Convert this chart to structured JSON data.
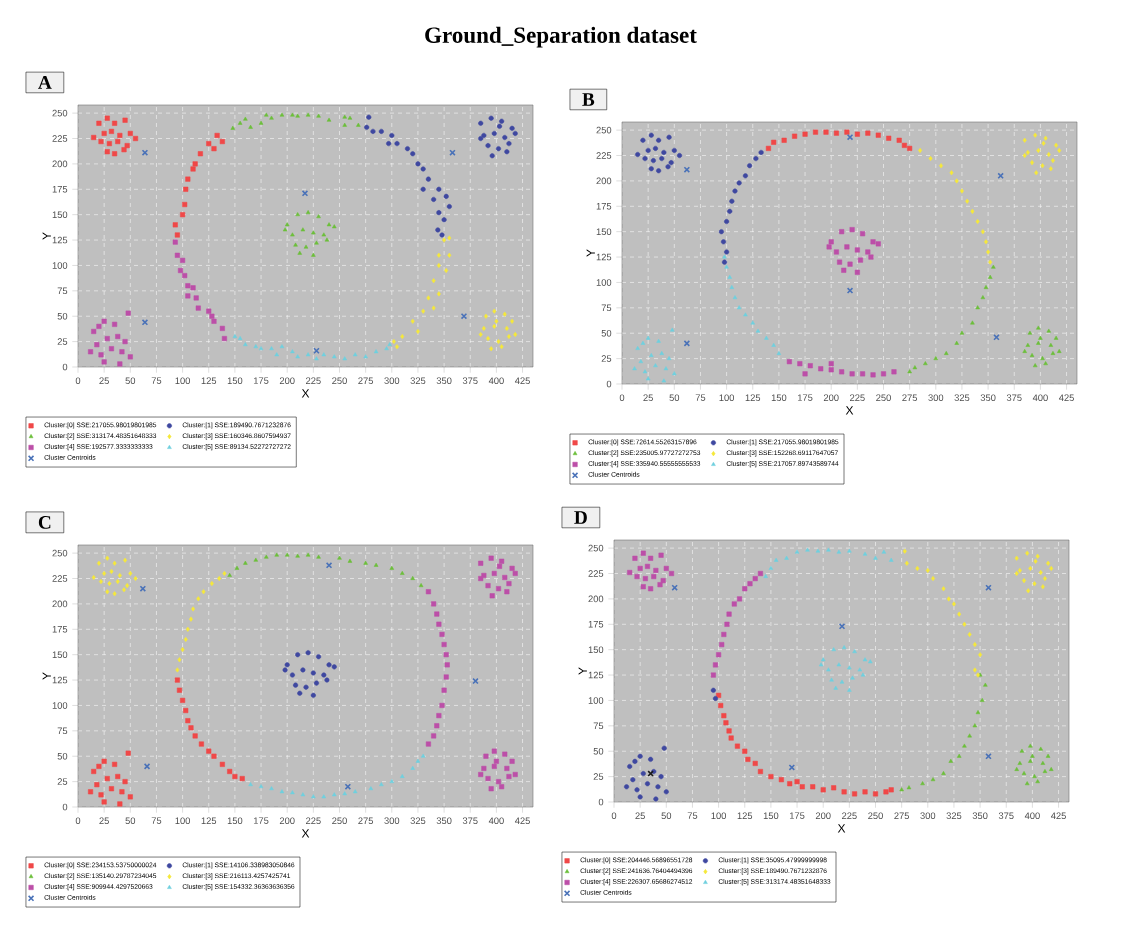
{
  "chart_data": [
    {
      "type": "scatter",
      "title": "A",
      "xlabel": "X",
      "ylabel": "Y",
      "annotations": [
        "Ground_Separation dataset"
      ],
      "xlim": [
        0,
        435
      ],
      "ylim": [
        0,
        258
      ],
      "xticks": [
        0,
        25,
        50,
        75,
        100,
        125,
        150,
        175,
        200,
        225,
        250,
        275,
        300,
        325,
        350,
        375,
        400,
        425
      ],
      "yticks": [
        0,
        25,
        50,
        75,
        100,
        125,
        150,
        175,
        200,
        225,
        250
      ],
      "grid": true,
      "legend": "bottom",
      "series": [
        {
          "name": "Cluster:[0] SSE:217055.98019801985",
          "color": "#f04848",
          "marker": "square",
          "x": [
            20,
            28,
            35,
            45,
            25,
            32,
            40,
            50,
            22,
            30,
            38,
            47,
            28,
            35,
            44,
            55,
            15,
            93,
            95,
            100,
            102,
            103,
            105,
            110,
            112,
            117,
            125,
            130,
            133,
            138
          ],
          "values": [
            240,
            245,
            240,
            243,
            230,
            232,
            228,
            230,
            222,
            220,
            222,
            218,
            212,
            210,
            214,
            225,
            226,
            140,
            130,
            150,
            160,
            175,
            185,
            195,
            200,
            210,
            220,
            215,
            228,
            222
          ]
        },
        {
          "name": "Cluster:[1] SSE:189490.7671232876",
          "color": "#3f48a0",
          "marker": "circle",
          "x": [
            385,
            395,
            405,
            415,
            388,
            398,
            408,
            418,
            392,
            402,
            412,
            396,
            385,
            403,
            410,
            278,
            276,
            282,
            290,
            300,
            297,
            305,
            315,
            320,
            325,
            330,
            335,
            330,
            345,
            340,
            352,
            345,
            355,
            350,
            344,
            348
          ],
          "values": [
            240,
            245,
            242,
            235,
            228,
            230,
            226,
            230,
            218,
            215,
            220,
            208,
            225,
            237,
            212,
            246,
            236,
            232,
            232,
            228,
            220,
            220,
            215,
            210,
            200,
            195,
            185,
            175,
            175,
            165,
            168,
            152,
            158,
            145,
            135,
            130
          ]
        },
        {
          "name": "Cluster:[2] SSE:313174.48351648333",
          "color": "#6cbf3a",
          "marker": "triangle",
          "x": [
            200,
            210,
            220,
            230,
            240,
            205,
            215,
            225,
            235,
            245,
            208,
            218,
            228,
            238,
            212,
            225,
            198,
            148,
            155,
            160,
            165,
            175,
            180,
            185,
            195,
            205,
            210,
            220,
            230,
            240,
            255,
            255,
            260,
            268
          ],
          "values": [
            140,
            150,
            152,
            148,
            140,
            130,
            135,
            132,
            130,
            138,
            120,
            118,
            122,
            125,
            112,
            110,
            135,
            235,
            240,
            244,
            236,
            240,
            248,
            245,
            248,
            248,
            247,
            248,
            247,
            243,
            246,
            238,
            245,
            238
          ]
        },
        {
          "name": "Cluster:[3] SSE:160346.8607594937",
          "color": "#f5e83a",
          "marker": "diamond",
          "x": [
            390,
            398,
            408,
            415,
            388,
            398,
            410,
            418,
            392,
            402,
            412,
            395,
            405,
            385,
            400,
            350,
            355,
            345,
            355,
            345,
            352,
            340,
            345,
            335,
            340,
            330,
            320,
            325,
            310,
            302,
            305
          ],
          "values": [
            50,
            55,
            52,
            45,
            38,
            40,
            38,
            32,
            28,
            25,
            30,
            18,
            20,
            32,
            45,
            125,
            127,
            110,
            110,
            100,
            95,
            85,
            72,
            68,
            58,
            55,
            45,
            35,
            30,
            25,
            20
          ]
        },
        {
          "name": "Cluster:[4] SSE:192577.3333333333",
          "color": "#bc4fa8",
          "marker": "square",
          "x": [
            15,
            25,
            35,
            48,
            18,
            28,
            38,
            45,
            12,
            22,
            32,
            42,
            50,
            25,
            40,
            20,
            93,
            95,
            100,
            98,
            102,
            105,
            110,
            105,
            113,
            115,
            125,
            128,
            130,
            138,
            140
          ],
          "values": [
            35,
            45,
            42,
            53,
            22,
            28,
            30,
            25,
            15,
            12,
            18,
            15,
            10,
            5,
            3,
            40,
            123,
            110,
            105,
            95,
            90,
            80,
            78,
            70,
            68,
            58,
            55,
            50,
            45,
            38,
            28
          ]
        },
        {
          "name": "Cluster:[5] SSE:89134.52272727272",
          "color": "#6fd0de",
          "marker": "triangle",
          "x": [
            150,
            155,
            160,
            170,
            175,
            185,
            190,
            195,
            205,
            210,
            220,
            228,
            235,
            245,
            255,
            265,
            275,
            285,
            295,
            298
          ],
          "values": [
            30,
            28,
            22,
            20,
            18,
            18,
            12,
            20,
            15,
            10,
            12,
            8,
            12,
            10,
            8,
            12,
            10,
            15,
            18,
            22
          ]
        },
        {
          "name": "Cluster Centroids",
          "color": "#4a72b8",
          "marker": "cross",
          "x": [
            64,
            358,
            217,
            64,
            369,
            228
          ],
          "values": [
            211,
            211,
            171,
            44,
            50,
            16
          ]
        }
      ]
    },
    {
      "type": "scatter",
      "title": "B",
      "xlabel": "X",
      "ylabel": "Y",
      "xlim": [
        0,
        435
      ],
      "ylim": [
        0,
        258
      ],
      "xticks": [
        0,
        25,
        50,
        75,
        100,
        125,
        150,
        175,
        200,
        225,
        250,
        275,
        300,
        325,
        350,
        375,
        400,
        425
      ],
      "yticks": [
        0,
        25,
        50,
        75,
        100,
        125,
        150,
        175,
        200,
        225,
        250
      ],
      "grid": true,
      "legend": "bottom",
      "series": [
        {
          "name": "Cluster:[0] SSE:72614.55263157896",
          "color": "#f04848",
          "marker": "square",
          "x": [
            140,
            145,
            155,
            165,
            175,
            185,
            195,
            205,
            215,
            225,
            235,
            245,
            255,
            265,
            270,
            275
          ],
          "values": [
            232,
            238,
            240,
            244,
            246,
            248,
            248,
            247,
            248,
            246,
            247,
            245,
            242,
            240,
            235,
            232
          ]
        },
        {
          "name": "Cluster:[1] SSE:217055.98019801985",
          "color": "#3f48a0",
          "marker": "circle",
          "x": [
            20,
            28,
            35,
            45,
            25,
            32,
            40,
            50,
            22,
            30,
            38,
            47,
            28,
            35,
            44,
            55,
            15,
            95,
            97,
            100,
            103,
            105,
            108,
            112,
            118,
            122,
            128,
            133,
            100,
            98
          ],
          "values": [
            240,
            245,
            240,
            243,
            230,
            232,
            228,
            230,
            222,
            220,
            222,
            218,
            212,
            210,
            214,
            225,
            226,
            150,
            140,
            160,
            170,
            180,
            190,
            198,
            205,
            215,
            222,
            228,
            130,
            120
          ]
        },
        {
          "name": "Cluster:[2] SSE:235005.97727272753",
          "color": "#6cbf3a",
          "marker": "triangle",
          "x": [
            390,
            398,
            408,
            415,
            388,
            398,
            410,
            418,
            392,
            402,
            412,
            395,
            405,
            385,
            400,
            275,
            280,
            290,
            300,
            310,
            320,
            325,
            335,
            340,
            345,
            348,
            352,
            355
          ],
          "values": [
            50,
            55,
            52,
            45,
            38,
            40,
            38,
            32,
            28,
            25,
            30,
            18,
            20,
            32,
            45,
            12,
            16,
            20,
            25,
            30,
            40,
            50,
            60,
            75,
            85,
            95,
            105,
            115
          ]
        },
        {
          "name": "Cluster:[3] SSE:152268.69117647057",
          "color": "#f5e83a",
          "marker": "diamond",
          "x": [
            385,
            395,
            405,
            415,
            388,
            398,
            408,
            418,
            392,
            402,
            412,
            396,
            385,
            403,
            410,
            285,
            295,
            305,
            315,
            320,
            325,
            330,
            335,
            340,
            345,
            348,
            350,
            352
          ],
          "values": [
            240,
            245,
            242,
            235,
            228,
            230,
            226,
            230,
            218,
            215,
            220,
            208,
            225,
            237,
            212,
            230,
            222,
            215,
            208,
            200,
            190,
            180,
            170,
            160,
            150,
            140,
            130,
            120
          ]
        },
        {
          "name": "Cluster:[4] SSE:335940.55555555533",
          "color": "#bc4fa8",
          "marker": "square",
          "x": [
            200,
            210,
            220,
            230,
            240,
            205,
            215,
            225,
            235,
            245,
            208,
            218,
            228,
            238,
            212,
            225,
            198,
            160,
            170,
            180,
            190,
            200,
            210,
            220,
            230,
            240,
            250,
            260,
            175,
            200
          ],
          "values": [
            140,
            150,
            152,
            148,
            140,
            130,
            135,
            132,
            130,
            138,
            120,
            118,
            122,
            125,
            112,
            110,
            135,
            22,
            20,
            18,
            15,
            14,
            12,
            10,
            10,
            9,
            10,
            12,
            10,
            20
          ]
        },
        {
          "name": "Cluster:[5] SSE:217057.89743589744",
          "color": "#6fd0de",
          "marker": "triangle",
          "x": [
            15,
            25,
            35,
            48,
            18,
            28,
            38,
            45,
            12,
            22,
            32,
            42,
            50,
            25,
            40,
            20,
            98,
            100,
            103,
            105,
            108,
            112,
            118,
            125,
            130,
            138,
            145,
            150
          ],
          "values": [
            35,
            45,
            42,
            53,
            22,
            28,
            30,
            25,
            15,
            12,
            18,
            15,
            10,
            5,
            3,
            40,
            125,
            115,
            105,
            95,
            85,
            75,
            68,
            60,
            52,
            45,
            38,
            30
          ]
        },
        {
          "name": "Cluster Centroids",
          "color": "#4a72b8",
          "marker": "cross",
          "x": [
            62,
            218,
            362,
            62,
            218,
            358
          ],
          "values": [
            211,
            243,
            205,
            40,
            92,
            46
          ]
        }
      ]
    },
    {
      "type": "scatter",
      "title": "C",
      "xlabel": "X",
      "ylabel": "Y",
      "xlim": [
        0,
        435
      ],
      "ylim": [
        0,
        258
      ],
      "xticks": [
        0,
        25,
        50,
        75,
        100,
        125,
        150,
        175,
        200,
        225,
        250,
        275,
        300,
        325,
        350,
        375,
        400,
        425
      ],
      "yticks": [
        0,
        25,
        50,
        75,
        100,
        125,
        150,
        175,
        200,
        225,
        250
      ],
      "grid": true,
      "legend": "bottom",
      "series": [
        {
          "name": "Cluster:[0] SSE:234153.53750000024",
          "color": "#f04848",
          "marker": "square",
          "x": [
            15,
            25,
            35,
            48,
            18,
            28,
            38,
            45,
            12,
            22,
            32,
            42,
            50,
            25,
            40,
            20,
            95,
            97,
            100,
            103,
            105,
            108,
            112,
            118,
            125,
            130,
            138,
            145,
            150,
            157
          ],
          "values": [
            35,
            45,
            42,
            53,
            22,
            28,
            30,
            25,
            15,
            12,
            18,
            15,
            10,
            5,
            3,
            40,
            125,
            115,
            105,
            95,
            85,
            78,
            70,
            62,
            55,
            50,
            42,
            35,
            30,
            28
          ]
        },
        {
          "name": "Cluster:[1] SSE:14106.338983050846",
          "color": "#3f48a0",
          "marker": "circle",
          "x": [
            200,
            210,
            220,
            230,
            240,
            205,
            215,
            225,
            235,
            245,
            208,
            218,
            228,
            238,
            212,
            225,
            198
          ],
          "values": [
            140,
            150,
            152,
            148,
            140,
            130,
            135,
            132,
            130,
            138,
            120,
            118,
            122,
            125,
            112,
            110,
            135
          ]
        },
        {
          "name": "Cluster:[2] SSE:135140.29787234045",
          "color": "#6cbf3a",
          "marker": "triangle",
          "x": [
            145,
            152,
            160,
            170,
            180,
            190,
            200,
            210,
            220,
            230,
            250,
            260,
            275,
            285,
            300,
            310,
            320,
            328
          ],
          "values": [
            228,
            235,
            240,
            243,
            246,
            248,
            248,
            247,
            248,
            246,
            245,
            242,
            240,
            238,
            235,
            230,
            225,
            218
          ]
        },
        {
          "name": "Cluster:[3] SSE:216113.4257425741",
          "color": "#f5e83a",
          "marker": "diamond",
          "x": [
            20,
            28,
            35,
            45,
            25,
            32,
            40,
            50,
            22,
            30,
            38,
            47,
            28,
            35,
            44,
            55,
            15,
            95,
            97,
            100,
            103,
            105,
            108,
            110,
            115,
            120,
            128,
            135,
            140
          ],
          "values": [
            240,
            245,
            240,
            243,
            230,
            232,
            228,
            230,
            222,
            220,
            222,
            218,
            212,
            210,
            214,
            225,
            226,
            135,
            145,
            155,
            165,
            175,
            185,
            195,
            205,
            212,
            220,
            225,
            230
          ]
        },
        {
          "name": "Cluster:[4] SSE:909944.4297520663",
          "color": "#bc4fa8",
          "marker": "square",
          "x": [
            385,
            395,
            405,
            415,
            388,
            398,
            408,
            418,
            392,
            402,
            412,
            396,
            385,
            403,
            410,
            390,
            398,
            408,
            415,
            388,
            398,
            410,
            418,
            392,
            402,
            412,
            395,
            405,
            385,
            400,
            335,
            340,
            343,
            345,
            348,
            350,
            352,
            353,
            352,
            350,
            348,
            345,
            343,
            340,
            335
          ],
          "values": [
            240,
            245,
            242,
            235,
            228,
            230,
            226,
            230,
            218,
            215,
            220,
            208,
            225,
            237,
            212,
            50,
            55,
            52,
            45,
            38,
            40,
            38,
            32,
            28,
            25,
            30,
            18,
            20,
            32,
            45,
            212,
            200,
            190,
            180,
            170,
            160,
            150,
            140,
            128,
            115,
            100,
            90,
            80,
            70,
            62
          ]
        },
        {
          "name": "Cluster:[5] SSE:154332.36363636356",
          "color": "#6fd0de",
          "marker": "triangle",
          "x": [
            165,
            175,
            185,
            195,
            205,
            215,
            225,
            235,
            245,
            255,
            265,
            280,
            290,
            300,
            310,
            320,
            325,
            330
          ],
          "values": [
            22,
            20,
            18,
            15,
            14,
            12,
            10,
            10,
            12,
            13,
            15,
            18,
            22,
            25,
            30,
            38,
            45,
            50
          ]
        },
        {
          "name": "Cluster Centroids",
          "color": "#4a72b8",
          "marker": "cross",
          "x": [
            62,
            240,
            380,
            66,
            258
          ],
          "values": [
            215,
            238,
            124,
            40,
            20
          ]
        }
      ]
    },
    {
      "type": "scatter",
      "title": "D",
      "xlabel": "X",
      "ylabel": "Y",
      "xlim": [
        0,
        435
      ],
      "ylim": [
        0,
        258
      ],
      "xticks": [
        0,
        25,
        50,
        75,
        100,
        125,
        150,
        175,
        200,
        225,
        250,
        275,
        300,
        325,
        350,
        375,
        400,
        425
      ],
      "yticks": [
        0,
        25,
        50,
        75,
        100,
        125,
        150,
        175,
        200,
        225,
        250
      ],
      "grid": true,
      "legend": "bottom",
      "series": [
        {
          "name": "Cluster:[0] SSE:204446.56896551728",
          "color": "#f04848",
          "marker": "square",
          "x": [
            100,
            102,
            105,
            107,
            110,
            112,
            118,
            125,
            128,
            135,
            140,
            150,
            160,
            168,
            175,
            180,
            190,
            200,
            210,
            220,
            230,
            240,
            250,
            260,
            265
          ],
          "values": [
            105,
            95,
            85,
            78,
            70,
            63,
            55,
            50,
            42,
            38,
            30,
            25,
            22,
            18,
            20,
            15,
            15,
            12,
            14,
            10,
            8,
            10,
            8,
            10,
            12
          ]
        },
        {
          "name": "Cluster:[1] SSE:35095.47999999998",
          "color": "#3f48a0",
          "marker": "circle",
          "x": [
            15,
            25,
            35,
            48,
            18,
            28,
            38,
            45,
            12,
            22,
            32,
            42,
            50,
            25,
            40,
            20,
            95,
            97
          ],
          "values": [
            35,
            45,
            42,
            53,
            22,
            28,
            30,
            25,
            15,
            12,
            18,
            15,
            10,
            5,
            3,
            40,
            110,
            102
          ]
        },
        {
          "name": "Cluster:[2] SSE:241636.76404494396",
          "color": "#6cbf3a",
          "marker": "triangle",
          "x": [
            390,
            398,
            408,
            415,
            388,
            398,
            410,
            418,
            392,
            402,
            412,
            395,
            405,
            385,
            400,
            275,
            282,
            295,
            305,
            315,
            322,
            330,
            335,
            340,
            345,
            348,
            352,
            355,
            350
          ],
          "values": [
            50,
            55,
            52,
            45,
            38,
            40,
            38,
            32,
            28,
            25,
            30,
            18,
            20,
            32,
            45,
            12,
            14,
            18,
            22,
            28,
            40,
            45,
            55,
            65,
            75,
            88,
            100,
            115,
            125
          ]
        },
        {
          "name": "Cluster:[3] SSE:189490.7671232876",
          "color": "#f5e83a",
          "marker": "diamond",
          "x": [
            385,
            395,
            405,
            415,
            388,
            398,
            408,
            418,
            392,
            402,
            412,
            396,
            385,
            403,
            410,
            278,
            280,
            290,
            300,
            305,
            315,
            320,
            325,
            330,
            335,
            340,
            345,
            350,
            345,
            348
          ],
          "values": [
            240,
            245,
            242,
            235,
            228,
            230,
            226,
            230,
            218,
            215,
            220,
            208,
            225,
            237,
            212,
            247,
            235,
            230,
            228,
            220,
            210,
            200,
            195,
            185,
            175,
            165,
            155,
            145,
            130,
            125
          ]
        },
        {
          "name": "Cluster:[4] SSE:226307.65686274512",
          "color": "#bc4fa8",
          "marker": "square",
          "x": [
            20,
            28,
            35,
            45,
            25,
            32,
            40,
            50,
            22,
            30,
            38,
            47,
            28,
            35,
            44,
            55,
            15,
            95,
            97,
            100,
            103,
            105,
            108,
            110,
            115,
            120,
            125,
            130,
            135,
            140
          ],
          "values": [
            240,
            245,
            240,
            243,
            230,
            232,
            228,
            230,
            222,
            220,
            222,
            218,
            212,
            210,
            214,
            225,
            226,
            125,
            135,
            145,
            155,
            165,
            175,
            185,
            195,
            200,
            210,
            215,
            220,
            225
          ]
        },
        {
          "name": "Cluster:[5] SSE:313174.48351648333",
          "color": "#6fd0de",
          "marker": "triangle",
          "x": [
            200,
            210,
            220,
            230,
            240,
            205,
            215,
            225,
            235,
            245,
            208,
            218,
            228,
            238,
            212,
            225,
            198,
            145,
            150,
            155,
            165,
            175,
            185,
            195,
            205,
            215,
            225,
            240,
            250,
            258,
            265
          ],
          "values": [
            140,
            150,
            152,
            148,
            140,
            130,
            135,
            132,
            130,
            138,
            120,
            118,
            122,
            125,
            112,
            110,
            135,
            222,
            230,
            238,
            240,
            246,
            248,
            247,
            248,
            246,
            247,
            244,
            240,
            246,
            238
          ]
        },
        {
          "name": "Cluster Centroids",
          "color": "#4a72b8",
          "colors": [
            "#4a72b8",
            "#4a72b8",
            "#4a72b8",
            "#4a72b8",
            "#4a72b8",
            "#1a1a1a"
          ],
          "marker": "cross",
          "x": [
            58,
            358,
            218,
            170,
            358,
            35
          ],
          "values": [
            211,
            211,
            173,
            34,
            45,
            28
          ]
        }
      ]
    }
  ]
}
